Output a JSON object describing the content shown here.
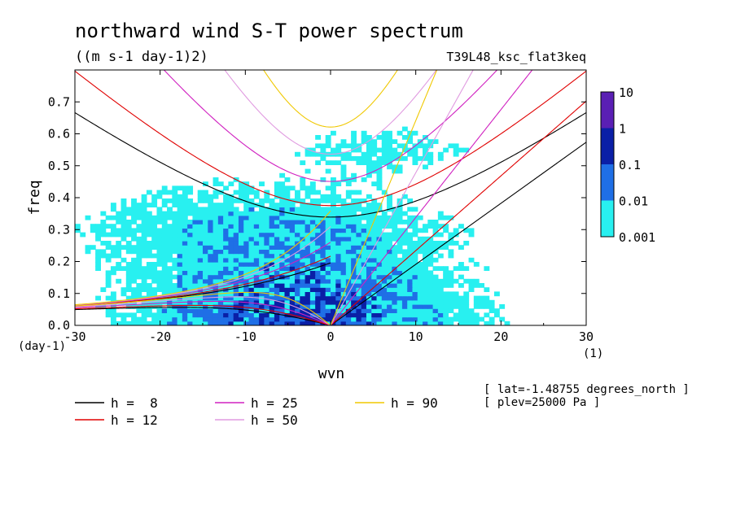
{
  "chart_data": {
    "type": "heatmap",
    "title": "northward wind S-T power spectrum",
    "subtitle": "((m s-1 day-1)2)",
    "run_label": "T39L48_ksc_flat3keq",
    "xlabel": "wvn",
    "ylabel": "freq",
    "x_unit": "(1)",
    "y_unit": "(day-1)",
    "xlim": [
      -30,
      30
    ],
    "ylim": [
      0,
      0.8
    ],
    "x_ticks": [
      "-30",
      "-20",
      "-10",
      "0",
      "10",
      "20",
      "30"
    ],
    "y_ticks": [
      "0.0",
      "0.1",
      "0.2",
      "0.3",
      "0.4",
      "0.5",
      "0.6",
      "0.7"
    ],
    "colorbar": {
      "labels": [
        "10",
        "1",
        "0.1",
        "0.01",
        "0.001"
      ],
      "colors": [
        "#5a1fb4",
        "#0a1fa6",
        "#1f6fe6",
        "#28f0f0"
      ]
    },
    "annotations": [
      "[ lat=-1.48755 degrees_north ]",
      "[ plev=25000 Pa ]"
    ],
    "dispersion_curves": [
      {
        "name": "h =  8",
        "color": "#000000",
        "h": 8
      },
      {
        "name": "h = 12",
        "color": "#e00000",
        "h": 12
      },
      {
        "name": "h = 25",
        "color": "#d020c0",
        "h": 25
      },
      {
        "name": "h = 50",
        "color": "#e09ae0",
        "h": 50
      },
      {
        "name": "h = 90",
        "color": "#f0c800",
        "h": 90
      }
    ]
  }
}
